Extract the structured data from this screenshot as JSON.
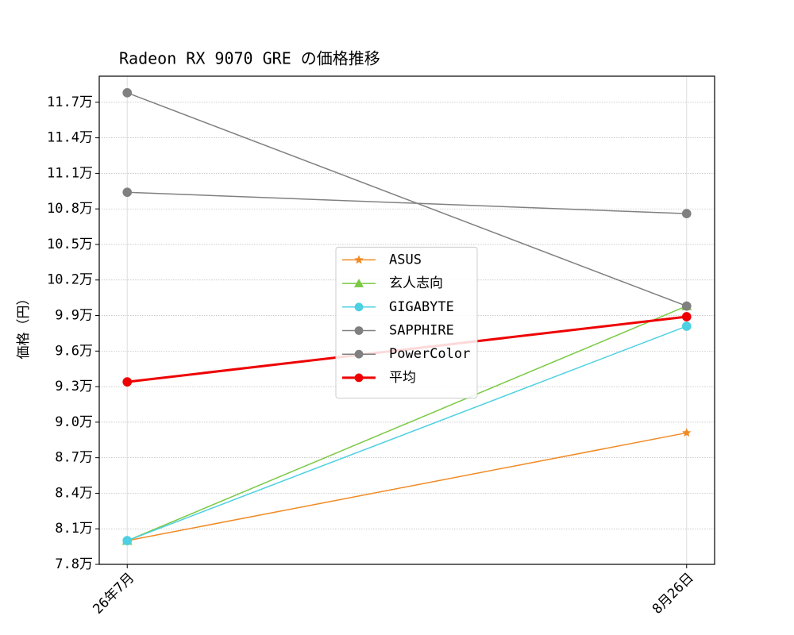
{
  "chart_data": {
    "type": "line",
    "title": "Radeon RX 9070 GRE の価格推移",
    "ylabel": "価格（円）",
    "categories": [
      "26年7月",
      "8月26日"
    ],
    "series": [
      {
        "name": "ASUS",
        "color": "#f08a24",
        "marker": "star",
        "linewidth": 1.5,
        "values": [
          80000,
          89100
        ]
      },
      {
        "name": "玄人志向",
        "color": "#7ac943",
        "marker": "triangle",
        "linewidth": 1.5,
        "values": [
          80000,
          99800
        ]
      },
      {
        "name": "GIGABYTE",
        "color": "#4dd0e1",
        "marker": "circle",
        "linewidth": 1.5,
        "values": [
          80000,
          98100
        ]
      },
      {
        "name": "SAPPHIRE",
        "color": "#808080",
        "marker": "circle",
        "linewidth": 1.5,
        "values": [
          117800,
          99800
        ]
      },
      {
        "name": "PowerColor",
        "color": "#808080",
        "marker": "circle",
        "linewidth": 1.5,
        "values": [
          109400,
          107600
        ]
      },
      {
        "name": "平均",
        "color": "#ee0000",
        "marker": "circle",
        "linewidth": 3,
        "values": [
          93400,
          98900
        ]
      }
    ],
    "ylim": [
      78000,
      119200
    ],
    "yticks": [
      {
        "value": 78000,
        "label": "7.8万"
      },
      {
        "value": 81000,
        "label": "8.1万"
      },
      {
        "value": 84000,
        "label": "8.4万"
      },
      {
        "value": 87000,
        "label": "8.7万"
      },
      {
        "value": 90000,
        "label": "9.0万"
      },
      {
        "value": 93000,
        "label": "9.3万"
      },
      {
        "value": 96000,
        "label": "9.6万"
      },
      {
        "value": 99000,
        "label": "9.9万"
      },
      {
        "value": 102000,
        "label": "10.2万"
      },
      {
        "value": 105000,
        "label": "10.5万"
      },
      {
        "value": 108000,
        "label": "10.8万"
      },
      {
        "value": 111000,
        "label": "11.1万"
      },
      {
        "value": 114000,
        "label": "11.4万"
      },
      {
        "value": 117000,
        "label": "11.7万"
      }
    ],
    "grid": true,
    "legend": "center"
  }
}
